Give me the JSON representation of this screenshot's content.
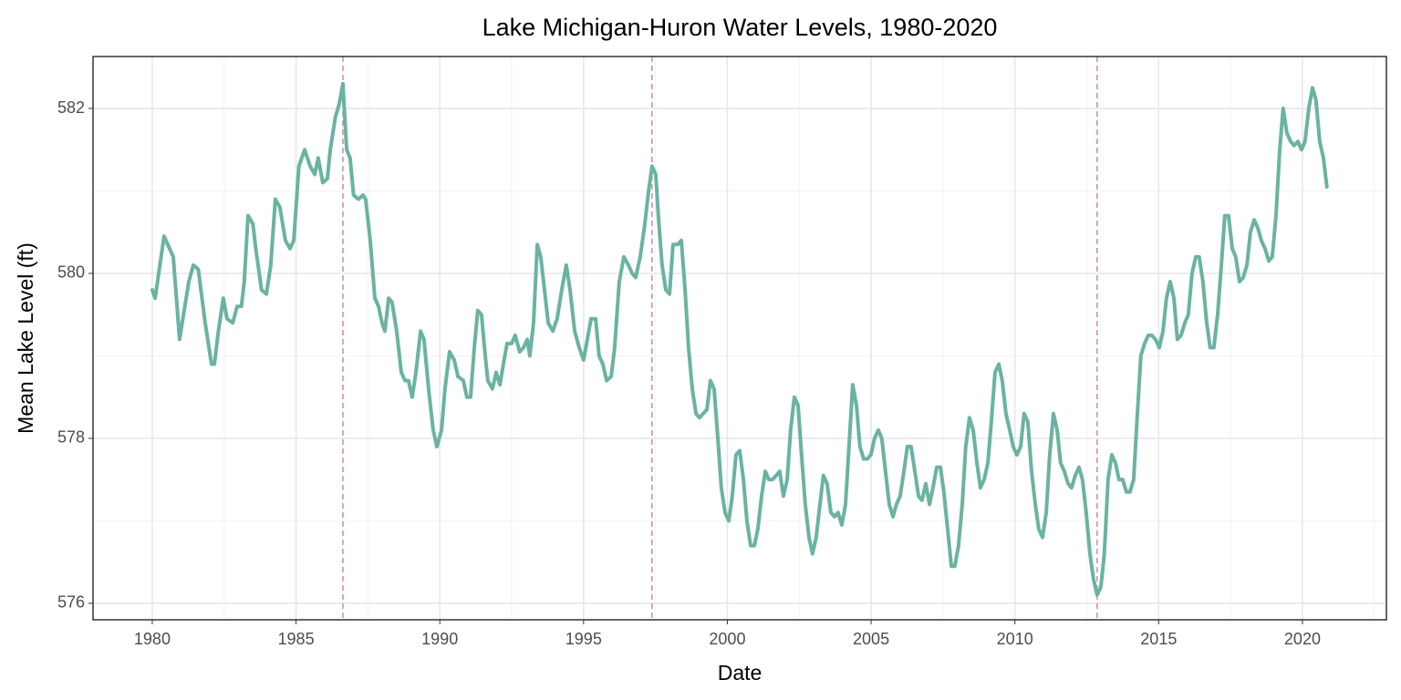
{
  "chart_data": {
    "type": "line",
    "title": "Lake Michigan-Huron Water Levels, 1980-2020",
    "xlabel": "Date",
    "ylabel": "Mean Lake Level (ft)",
    "color": "#69b3a2",
    "x": [
      1980.0,
      1980.1,
      1980.41,
      1980.73,
      1980.95,
      1981.27,
      1981.43,
      1981.6,
      1981.84,
      1982.06,
      1982.16,
      1982.3,
      1982.47,
      1982.6,
      1982.8,
      1982.95,
      1983.1,
      1983.2,
      1983.33,
      1983.5,
      1983.6,
      1983.8,
      1983.97,
      1984.12,
      1984.28,
      1984.44,
      1984.63,
      1984.79,
      1984.92,
      1985.1,
      1985.3,
      1985.49,
      1985.65,
      1985.77,
      1985.93,
      1986.09,
      1986.19,
      1986.37,
      1986.5,
      1986.63,
      1986.76,
      1986.88,
      1987.0,
      1987.17,
      1987.33,
      1987.42,
      1987.58,
      1987.74,
      1987.87,
      1987.99,
      1988.09,
      1988.22,
      1988.34,
      1988.5,
      1988.66,
      1988.79,
      1988.91,
      1989.04,
      1989.17,
      1989.33,
      1989.45,
      1989.61,
      1989.77,
      1989.9,
      1990.06,
      1990.18,
      1990.34,
      1990.5,
      1990.63,
      1990.82,
      1990.94,
      1991.07,
      1991.2,
      1991.32,
      1991.45,
      1991.58,
      1991.67,
      1991.83,
      1991.96,
      1992.09,
      1992.21,
      1992.34,
      1992.5,
      1992.62,
      1992.78,
      1992.91,
      1993.04,
      1993.13,
      1993.26,
      1993.39,
      1993.51,
      1993.64,
      1993.77,
      1993.93,
      1994.08,
      1994.24,
      1994.4,
      1994.53,
      1994.69,
      1994.85,
      1995.0,
      1995.13,
      1995.26,
      1995.42,
      1995.54,
      1995.67,
      1995.8,
      1995.96,
      1996.08,
      1996.24,
      1996.4,
      1996.56,
      1996.69,
      1996.81,
      1996.97,
      1997.13,
      1997.26,
      1997.38,
      1997.51,
      1997.6,
      1997.73,
      1997.86,
      1997.99,
      1998.11,
      1998.27,
      1998.4,
      1998.53,
      1998.65,
      1998.78,
      1998.91,
      1999.03,
      1999.16,
      1999.29,
      1999.41,
      1999.54,
      1999.67,
      1999.79,
      1999.92,
      2000.05,
      2000.17,
      2000.3,
      2000.43,
      2000.56,
      2000.68,
      2000.81,
      2000.94,
      2001.06,
      2001.19,
      2001.32,
      2001.44,
      2001.57,
      2001.7,
      2001.82,
      2001.95,
      2002.08,
      2002.2,
      2002.33,
      2002.46,
      2002.58,
      2002.71,
      2002.84,
      2002.96,
      2003.09,
      2003.22,
      2003.34,
      2003.47,
      2003.6,
      2003.73,
      2003.85,
      2003.98,
      2004.11,
      2004.23,
      2004.36,
      2004.49,
      2004.61,
      2004.74,
      2004.87,
      2004.99,
      2005.12,
      2005.25,
      2005.37,
      2005.5,
      2005.63,
      2005.76,
      2005.88,
      2006.01,
      2006.14,
      2006.26,
      2006.39,
      2006.52,
      2006.65,
      2006.77,
      2006.9,
      2007.03,
      2007.15,
      2007.28,
      2007.41,
      2007.53,
      2007.66,
      2007.79,
      2007.91,
      2008.04,
      2008.17,
      2008.29,
      2008.42,
      2008.55,
      2008.68,
      2008.8,
      2008.93,
      2009.06,
      2009.18,
      2009.31,
      2009.44,
      2009.56,
      2009.69,
      2009.82,
      2009.94,
      2010.07,
      2010.2,
      2010.32,
      2010.45,
      2010.58,
      2010.71,
      2010.83,
      2010.96,
      2011.09,
      2011.21,
      2011.34,
      2011.47,
      2011.59,
      2011.72,
      2011.85,
      2011.97,
      2012.1,
      2012.23,
      2012.35,
      2012.48,
      2012.61,
      2012.73,
      2012.86,
      2012.99,
      2013.11,
      2013.24,
      2013.37,
      2013.5,
      2013.62,
      2013.75,
      2013.88,
      2014.0,
      2014.13,
      2014.26,
      2014.38,
      2014.51,
      2014.64,
      2014.76,
      2014.89,
      2015.02,
      2015.15,
      2015.27,
      2015.4,
      2015.53,
      2015.65,
      2015.78,
      2015.91,
      2016.03,
      2016.16,
      2016.29,
      2016.41,
      2016.54,
      2016.67,
      2016.79,
      2016.92,
      2017.05,
      2017.18,
      2017.3,
      2017.43,
      2017.56,
      2017.68,
      2017.81,
      2017.94,
      2018.07,
      2018.19,
      2018.32,
      2018.45,
      2018.57,
      2018.7,
      2018.83,
      2018.95,
      2019.08,
      2019.21,
      2019.33,
      2019.46,
      2019.59,
      2019.71,
      2019.84,
      2019.97,
      2020.09,
      2020.22,
      2020.35,
      2020.47,
      2020.6,
      2020.73,
      2020.85
    ],
    "values": [
      579.8,
      579.7,
      580.45,
      580.2,
      579.2,
      579.9,
      580.1,
      580.05,
      579.4,
      578.9,
      578.9,
      579.3,
      579.7,
      579.45,
      579.4,
      579.6,
      579.6,
      579.9,
      580.7,
      580.6,
      580.3,
      579.8,
      579.75,
      580.1,
      580.9,
      580.8,
      580.4,
      580.3,
      580.4,
      581.3,
      581.5,
      581.3,
      581.2,
      581.4,
      581.1,
      581.15,
      581.5,
      581.9,
      582.05,
      582.3,
      581.5,
      581.4,
      580.95,
      580.9,
      580.95,
      580.9,
      580.4,
      579.7,
      579.6,
      579.4,
      579.3,
      579.7,
      579.65,
      579.3,
      578.8,
      578.7,
      578.7,
      578.5,
      578.8,
      579.3,
      579.2,
      578.6,
      578.1,
      577.9,
      578.1,
      578.6,
      579.05,
      578.95,
      578.75,
      578.7,
      578.5,
      578.5,
      579.1,
      579.55,
      579.5,
      579.0,
      578.7,
      578.6,
      578.8,
      578.65,
      578.9,
      579.15,
      579.15,
      579.25,
      579.05,
      579.1,
      579.2,
      579.0,
      579.4,
      580.35,
      580.2,
      579.8,
      579.4,
      579.3,
      579.45,
      579.8,
      580.1,
      579.8,
      579.3,
      579.1,
      578.95,
      579.2,
      579.45,
      579.45,
      579.0,
      578.9,
      578.7,
      578.75,
      579.1,
      579.9,
      580.2,
      580.1,
      580.0,
      579.95,
      580.2,
      580.6,
      581.0,
      581.3,
      581.2,
      580.7,
      580.1,
      579.8,
      579.75,
      580.35,
      580.35,
      580.4,
      579.8,
      579.1,
      578.6,
      578.3,
      578.25,
      578.3,
      578.35,
      578.7,
      578.6,
      578.0,
      577.4,
      577.1,
      577.0,
      577.3,
      577.8,
      577.85,
      577.5,
      577.0,
      576.7,
      576.7,
      576.9,
      577.3,
      577.6,
      577.5,
      577.5,
      577.55,
      577.6,
      577.3,
      577.5,
      578.1,
      578.5,
      578.4,
      577.8,
      577.2,
      576.8,
      576.6,
      576.8,
      577.2,
      577.55,
      577.45,
      577.1,
      577.05,
      577.1,
      576.95,
      577.2,
      577.9,
      578.65,
      578.4,
      577.9,
      577.75,
      577.75,
      577.8,
      578.0,
      578.1,
      578.0,
      577.6,
      577.2,
      577.05,
      577.2,
      577.3,
      577.6,
      577.9,
      577.9,
      577.6,
      577.3,
      577.25,
      577.45,
      577.2,
      577.4,
      577.65,
      577.65,
      577.35,
      576.9,
      576.45,
      576.45,
      576.7,
      577.2,
      577.9,
      578.25,
      578.1,
      577.7,
      577.4,
      577.5,
      577.7,
      578.2,
      578.8,
      578.9,
      578.7,
      578.3,
      578.1,
      577.9,
      577.8,
      577.9,
      578.3,
      578.2,
      577.6,
      577.2,
      576.9,
      576.8,
      577.1,
      577.8,
      578.3,
      578.1,
      577.7,
      577.6,
      577.45,
      577.4,
      577.55,
      577.65,
      577.5,
      577.1,
      576.6,
      576.3,
      576.1,
      576.2,
      576.6,
      577.5,
      577.8,
      577.7,
      577.5,
      577.5,
      577.35,
      577.35,
      577.5,
      578.3,
      579.0,
      579.15,
      579.25,
      579.25,
      579.2,
      579.1,
      579.3,
      579.7,
      579.9,
      579.7,
      579.2,
      579.25,
      579.4,
      579.5,
      580.0,
      580.2,
      580.2,
      579.9,
      579.4,
      579.1,
      579.1,
      579.5,
      580.1,
      580.7,
      580.7,
      580.3,
      580.2,
      579.9,
      579.95,
      580.1,
      580.5,
      580.65,
      580.55,
      580.4,
      580.3,
      580.15,
      580.2,
      580.7,
      581.5,
      582.0,
      581.7,
      581.6,
      581.55,
      581.6,
      581.5,
      581.6,
      582.0,
      582.25,
      582.1,
      581.6,
      581.4,
      581.05
    ],
    "xlim": [
      1977.94,
      2022.92
    ],
    "ylim": [
      575.8,
      582.63
    ],
    "xticks": [
      1980,
      1985,
      1990,
      1995,
      2000,
      2005,
      2010,
      2015,
      2020
    ],
    "yticks": [
      576,
      578,
      580,
      582
    ],
    "x_minor_ticks": [
      1982.5,
      1987.5,
      1992.5,
      1997.5,
      2002.5,
      2007.5,
      2012.5,
      2017.5,
      2022.5
    ],
    "y_minor_ticks": [
      577,
      579,
      581
    ],
    "grid": true,
    "vlines": [
      1986.63,
      1997.38,
      2012.86
    ],
    "vline_color": "#cc8b9c"
  }
}
